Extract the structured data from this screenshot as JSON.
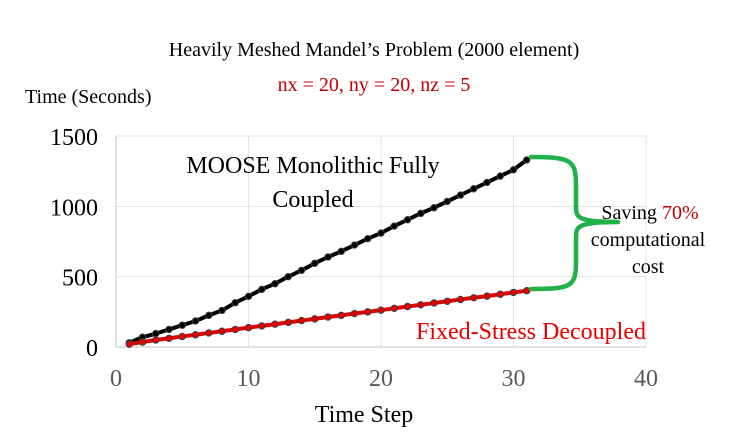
{
  "chart_data": {
    "type": "line",
    "title": "Heavily Meshed Mandel’s Problem (2000 element)",
    "subtitle": "nx = 20, ny = 20, nz = 5",
    "xlabel": "Time Step",
    "ylabel": "Time (Seconds)",
    "xlim": [
      0,
      40
    ],
    "ylim": [
      0,
      1500
    ],
    "xticks": [
      "0",
      "10",
      "20",
      "30",
      "40"
    ],
    "yticks": [
      "0",
      "500",
      "1000",
      "1500"
    ],
    "grid": true,
    "colors": {
      "monolithic": "#000000",
      "decoupled": "#e60000",
      "subtitle": "#c00000",
      "brace": "#22b04a"
    },
    "series": [
      {
        "name": "MOOSE Monolithic Fully Coupled",
        "x": [
          1,
          2,
          3,
          4,
          5,
          6,
          7,
          8,
          9,
          10,
          11,
          12,
          13,
          14,
          15,
          16,
          17,
          18,
          19,
          20,
          21,
          22,
          23,
          24,
          25,
          26,
          27,
          28,
          29,
          30,
          31
        ],
        "values": [
          30,
          70,
          95,
          125,
          155,
          185,
          225,
          260,
          315,
          360,
          410,
          450,
          500,
          545,
          595,
          640,
          680,
          725,
          770,
          810,
          860,
          905,
          950,
          990,
          1035,
          1080,
          1125,
          1170,
          1215,
          1260,
          1330
        ]
      },
      {
        "name": "Fixed-Stress Decoupled",
        "x": [
          1,
          2,
          3,
          4,
          5,
          6,
          7,
          8,
          9,
          10,
          11,
          12,
          13,
          14,
          15,
          16,
          17,
          18,
          19,
          20,
          21,
          22,
          23,
          24,
          25,
          26,
          27,
          28,
          29,
          30,
          31
        ],
        "values": [
          20,
          35,
          50,
          62,
          75,
          87,
          100,
          112,
          125,
          138,
          150,
          162,
          175,
          188,
          200,
          213,
          225,
          238,
          250,
          262,
          275,
          288,
          300,
          313,
          325,
          338,
          350,
          362,
          375,
          388,
          400
        ]
      }
    ],
    "annotations": {
      "monolithic_label_line1": "MOOSE Monolithic Fully",
      "monolithic_label_line2": "Coupled",
      "decoupled_label": "Fixed-Stress Decoupled",
      "saving_prefix": "Saving ",
      "saving_value": "70%",
      "saving_line2": "computational",
      "saving_line3": "cost"
    }
  }
}
